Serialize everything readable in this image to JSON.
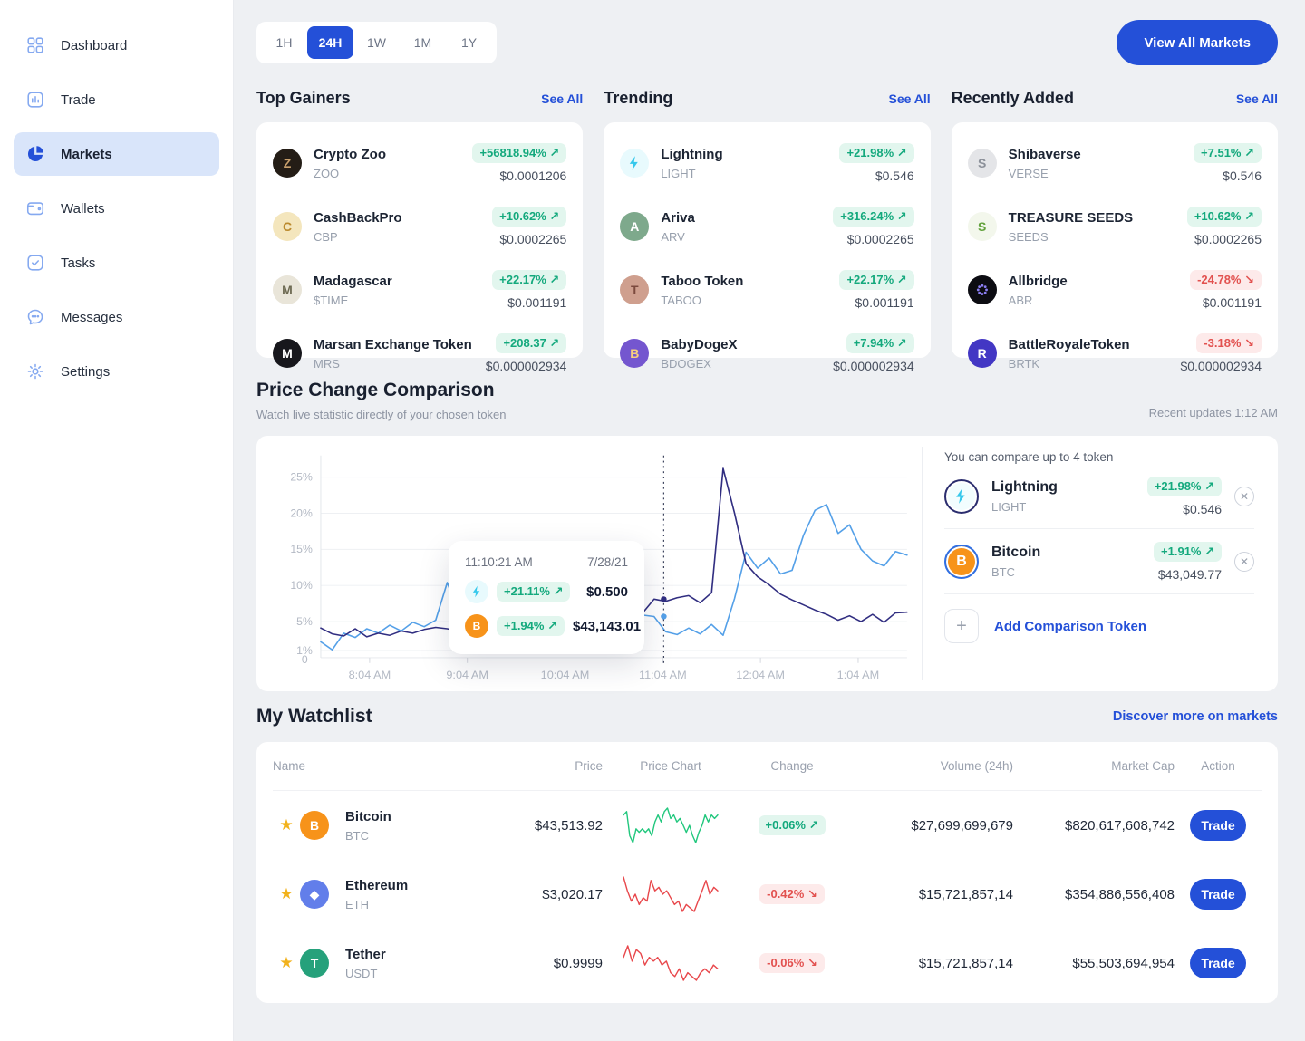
{
  "sidebar": {
    "items": [
      {
        "id": "dashboard",
        "label": "Dashboard",
        "active": false
      },
      {
        "id": "trade",
        "label": "Trade",
        "active": false
      },
      {
        "id": "markets",
        "label": "Markets",
        "active": true
      },
      {
        "id": "wallets",
        "label": "Wallets",
        "active": false
      },
      {
        "id": "tasks",
        "label": "Tasks",
        "active": false
      },
      {
        "id": "messages",
        "label": "Messages",
        "active": false
      },
      {
        "id": "settings",
        "label": "Settings",
        "active": false
      }
    ]
  },
  "topbar": {
    "time_tabs": [
      "1H",
      "24H",
      "1W",
      "1M",
      "1Y"
    ],
    "active_tab": "24H",
    "view_all_button": "View All Markets"
  },
  "market_sections": [
    {
      "title": "Top Gainers",
      "see_all": "See All",
      "rows": [
        {
          "name": "Crypto Zoo",
          "symbol": "ZOO",
          "change": "+56818.94% ↗",
          "dir": "up",
          "price": "$0.0001206",
          "icon": "zoo"
        },
        {
          "name": "CashBackPro",
          "symbol": "CBP",
          "change": "+10.62% ↗",
          "dir": "up",
          "price": "$0.0002265",
          "icon": "cbp"
        },
        {
          "name": "Madagascar",
          "symbol": "$TIME",
          "change": "+22.17% ↗",
          "dir": "up",
          "price": "$0.001191",
          "icon": "time"
        },
        {
          "name": "Marsan Exchange Token",
          "symbol": "MRS",
          "change": "+208.37 ↗",
          "dir": "up",
          "price": "$0.000002934",
          "icon": "mrs"
        }
      ]
    },
    {
      "title": "Trending",
      "see_all": "See All",
      "rows": [
        {
          "name": "Lightning",
          "symbol": "LIGHT",
          "change": "+21.98% ↗",
          "dir": "up",
          "price": "$0.546",
          "icon": "light"
        },
        {
          "name": "Ariva",
          "symbol": "ARV",
          "change": "+316.24% ↗",
          "dir": "up",
          "price": "$0.0002265",
          "icon": "arv"
        },
        {
          "name": "Taboo Token",
          "symbol": "TABOO",
          "change": "+22.17% ↗",
          "dir": "up",
          "price": "$0.001191",
          "icon": "taboo"
        },
        {
          "name": "BabyDogeX",
          "symbol": "BDOGEX",
          "change": "+7.94% ↗",
          "dir": "up",
          "price": "$0.000002934",
          "icon": "bdogex"
        }
      ]
    },
    {
      "title": "Recently Added",
      "see_all": "See All",
      "rows": [
        {
          "name": "Shibaverse",
          "symbol": "VERSE",
          "change": "+7.51% ↗",
          "dir": "up",
          "price": "$0.546",
          "icon": "verse"
        },
        {
          "name": "TREASURE SEEDS",
          "symbol": "SEEDS",
          "change": "+10.62% ↗",
          "dir": "up",
          "price": "$0.0002265",
          "icon": "seeds"
        },
        {
          "name": "Allbridge",
          "symbol": "ABR",
          "change": "-24.78% ↘",
          "dir": "down",
          "price": "$0.001191",
          "icon": "abr"
        },
        {
          "name": "BattleRoyaleToken",
          "symbol": "BRTK",
          "change": "-3.18% ↘",
          "dir": "down",
          "price": "$0.000002934",
          "icon": "brtk"
        }
      ]
    }
  ],
  "comparison": {
    "title": "Price Change Comparison",
    "subtitle": "Watch live statistic directly of your chosen token",
    "updated": "Recent updates 1:12 AM",
    "panel_hint": "You can compare up to 4 token",
    "tokens": [
      {
        "name": "Lightning",
        "symbol": "LIGHT",
        "change": "+21.98% ↗",
        "dir": "up",
        "price": "$0.546",
        "icon": "light",
        "ring": "#2b2d6e",
        "icon_bg": "#f2fdfe"
      },
      {
        "name": "Bitcoin",
        "symbol": "BTC",
        "change": "+1.91% ↗",
        "dir": "up",
        "price": "$43,049.77",
        "icon": "btc",
        "ring": "#2f6fe4"
      }
    ],
    "add_label": "Add Comparison Token",
    "tooltip": {
      "time": "11:10:21 AM",
      "date": "7/28/21",
      "rows": [
        {
          "icon": "light",
          "change": "+21.11% ↗",
          "dir": "up",
          "value": "$0.500"
        },
        {
          "icon": "btc",
          "change": "+1.94% ↗",
          "dir": "up",
          "value": "$43,143.01"
        }
      ]
    }
  },
  "chart_data": {
    "type": "line",
    "title": "Price Change Comparison",
    "x_ticks": [
      "8:04 AM",
      "9:04 AM",
      "10:04 AM",
      "11:04 AM",
      "12:04 AM",
      "1:04 AM"
    ],
    "y_ticks": [
      "25%",
      "20%",
      "15%",
      "10%",
      "5%",
      "1%"
    ],
    "y_tick_values": [
      25,
      20,
      15,
      10,
      5,
      1
    ],
    "origin_label": "0",
    "ylim": [
      0,
      27.5
    ],
    "grid": true,
    "marker": {
      "x_fraction": 0.585,
      "dots": [
        {
          "series": "Lightning",
          "value": 5.7
        },
        {
          "series": "Bitcoin",
          "value": 8.1
        }
      ]
    },
    "series": [
      {
        "name": "Lightning",
        "color": "#54a0e8",
        "values": [
          2.2,
          1.1,
          3.4,
          2.8,
          4.0,
          3.4,
          4.5,
          3.7,
          4.9,
          4.3,
          5.2,
          10.4,
          6.2,
          6.6,
          4.7,
          5.6,
          5.1,
          5.8,
          5.3,
          5.9,
          5.5,
          6.1,
          5.7,
          5.4,
          5.9,
          5.7,
          6.0,
          5.6,
          5.9,
          5.7,
          3.6,
          3.2,
          4.1,
          3.3,
          4.6,
          3.1,
          8.2,
          14.6,
          12.4,
          13.8,
          11.6,
          12.1,
          17.0,
          20.4,
          21.2,
          17.2,
          18.4,
          15.0,
          13.4,
          12.7,
          14.7,
          14.2
        ]
      },
      {
        "name": "Bitcoin",
        "color": "#312e81",
        "values": [
          4.1,
          3.3,
          3.0,
          4.0,
          2.9,
          3.4,
          3.1,
          3.7,
          3.4,
          3.9,
          4.2,
          4.0,
          3.7,
          3.0,
          2.4,
          1.5,
          2.6,
          2.2,
          2.8,
          2.4,
          2.6,
          2.5,
          2.7,
          2.4,
          2.6,
          2.8,
          3.4,
          4.6,
          6.2,
          8.1,
          7.8,
          8.3,
          8.6,
          7.6,
          9.0,
          26.2,
          20.0,
          13.0,
          11.2,
          10.1,
          8.8,
          8.0,
          7.3,
          6.6,
          6.0,
          5.2,
          5.8,
          5.0,
          6.0,
          4.9,
          6.2,
          6.3
        ]
      }
    ]
  },
  "watchlist": {
    "title": "My Watchlist",
    "link": "Discover more on markets",
    "columns": [
      "Name",
      "Price",
      "Price Chart",
      "Change",
      "Volume (24h)",
      "Market Cap",
      "Action"
    ],
    "rows": [
      {
        "name": "Bitcoin",
        "symbol": "BTC",
        "icon": "btc",
        "price": "$43,513.92",
        "change": "+0.06% ↗",
        "dir": "up",
        "volume": "$27,699,699,679",
        "market_cap": "$820,617,608,742",
        "action": "Trade",
        "spark": {
          "color": "#21c77d",
          "values": [
            11,
            12,
            5,
            3,
            7,
            6,
            7,
            6,
            7,
            5,
            9,
            11,
            9,
            12,
            13,
            10,
            11,
            9,
            10,
            8,
            6,
            8,
            5,
            3,
            6,
            8,
            11,
            9,
            11,
            10,
            11
          ]
        }
      },
      {
        "name": "Ethereum",
        "symbol": "ETH",
        "icon": "eth",
        "price": "$3,020.17",
        "change": "-0.42% ↘",
        "dir": "down",
        "volume": "$15,721,857,14",
        "market_cap": "$354,886,556,408",
        "action": "Trade",
        "spark": {
          "color": "#e8474b",
          "values": [
            13,
            9,
            6,
            8,
            5,
            7,
            6,
            12,
            9,
            10,
            8,
            9,
            7,
            5,
            6,
            3,
            5,
            4,
            3,
            6,
            9,
            12,
            8,
            10,
            9
          ]
        }
      },
      {
        "name": "Tether",
        "symbol": "USDT",
        "icon": "usdt",
        "price": "$0.9999",
        "change": "-0.06% ↘",
        "dir": "down",
        "volume": "$15,721,857,14",
        "market_cap": "$55,503,694,954",
        "action": "Trade",
        "spark": {
          "color": "#e8474b",
          "values": [
            9,
            12,
            8,
            11,
            10,
            7,
            9,
            8,
            9,
            7,
            8,
            5,
            4,
            6,
            3,
            5,
            4,
            3,
            5,
            6,
            5,
            7,
            6
          ]
        }
      }
    ]
  },
  "icons": {
    "zoo": {
      "type": "letter",
      "glyph": "Z",
      "bg": "#241d16",
      "fg": "#c9a06c"
    },
    "cbp": {
      "type": "letter",
      "glyph": "C",
      "bg": "#f4e6bd",
      "fg": "#bb8a2e"
    },
    "time": {
      "type": "letter",
      "glyph": "M",
      "bg": "#e9e5d9",
      "fg": "#6d6a52"
    },
    "mrs": {
      "type": "letter",
      "glyph": "M",
      "bg": "#17171c",
      "fg": "#ffffff"
    },
    "light": {
      "type": "bolt",
      "bg": "#e8fafd",
      "fg": "#35c8ec"
    },
    "arv": {
      "type": "letter",
      "glyph": "A",
      "bg": "#7ea98c",
      "fg": "#ffffff"
    },
    "taboo": {
      "type": "letter",
      "glyph": "T",
      "bg": "#cf9f8e",
      "fg": "#7c4a3e"
    },
    "bdogex": {
      "type": "letter",
      "glyph": "B",
      "bg": "#7456cf",
      "fg": "#f8cf7d"
    },
    "verse": {
      "type": "letter",
      "glyph": "S",
      "bg": "#e4e5e8",
      "fg": "#8b9099"
    },
    "seeds": {
      "type": "letter",
      "glyph": "S",
      "bg": "#f3f7ec",
      "fg": "#63a23d"
    },
    "abr": {
      "type": "dots",
      "bg": "#0c0c12",
      "fg": "#8b7ef2"
    },
    "brtk": {
      "type": "letter",
      "glyph": "R",
      "bg": "#4337c4",
      "fg": "#ffffff"
    },
    "btc": {
      "type": "letter",
      "glyph": "B",
      "bg": "#f7931a",
      "fg": "#ffffff"
    },
    "eth": {
      "type": "letter",
      "glyph": "◆",
      "bg": "#627eea",
      "fg": "#ffffff"
    },
    "usdt": {
      "type": "letter",
      "glyph": "T",
      "bg": "#26a17b",
      "fg": "#ffffff"
    }
  },
  "colors": {
    "accent": "#2450d8",
    "positive": "#14a97d",
    "negative": "#e2514f",
    "positive_bg": "#e2f6ee",
    "negative_bg": "#fdeaea",
    "line_light": "#54a0e8",
    "line_dark": "#312e81",
    "star": "#f2b21c"
  }
}
